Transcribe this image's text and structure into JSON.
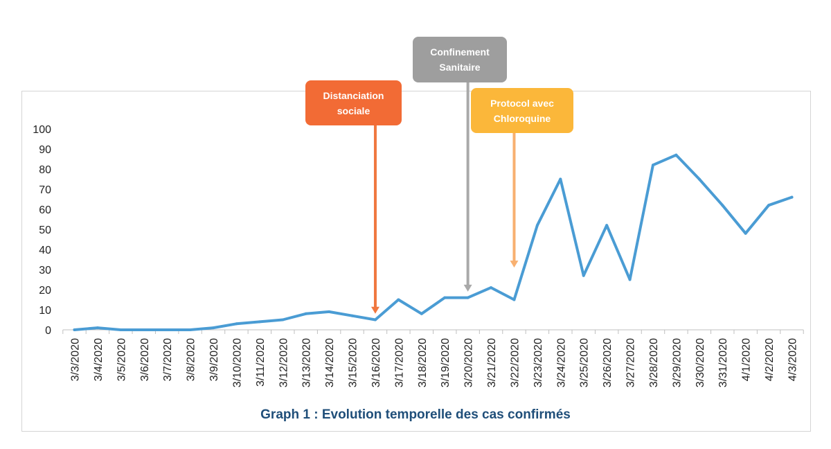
{
  "chart_data": {
    "type": "line",
    "title": "Graph 1 : Evolution temporelle des cas confirmés",
    "xlabel": "",
    "ylabel": "",
    "ylim": [
      0,
      100
    ],
    "yticks": [
      0,
      10,
      20,
      30,
      40,
      50,
      60,
      70,
      80,
      90,
      100
    ],
    "grid": false,
    "line_color": "#4a9cd4",
    "categories": [
      "3/3/2020",
      "3/4/2020",
      "3/5/2020",
      "3/6/2020",
      "3/7/2020",
      "3/8/2020",
      "3/9/2020",
      "3/10/2020",
      "3/11/2020",
      "3/12/2020",
      "3/13/2020",
      "3/14/2020",
      "3/15/2020",
      "3/16/2020",
      "3/17/2020",
      "3/18/2020",
      "3/19/2020",
      "3/20/2020",
      "3/21/2020",
      "3/22/2020",
      "3/23/2020",
      "3/24/2020",
      "3/25/2020",
      "3/26/2020",
      "3/27/2020",
      "3/28/2020",
      "3/29/2020",
      "3/30/2020",
      "3/31/2020",
      "4/1/2020",
      "4/2/2020",
      "4/3/2020"
    ],
    "values": [
      0,
      1,
      0,
      0,
      0,
      0,
      1,
      3,
      4,
      5,
      8,
      9,
      7,
      5,
      15,
      8,
      16,
      16,
      21,
      15,
      52,
      75,
      27,
      52,
      25,
      82,
      87,
      75,
      62,
      48,
      62,
      66
    ],
    "annotations": [
      {
        "label": "Distanciation sociale",
        "date": "3/16/2020",
        "color": "#f26b35",
        "arrow_color": "#f0773f",
        "arrow_to_value": 8
      },
      {
        "label": "Confinement Sanitaire",
        "date": "3/20/2020",
        "color": "#9e9e9e",
        "arrow_color": "#a9a9a9",
        "arrow_to_value": 19
      },
      {
        "label": "Protocol avec Chloroquine",
        "date": "3/22/2020",
        "color": "#fbb73a",
        "arrow_color": "#f8b070",
        "arrow_to_value": 31
      }
    ]
  }
}
